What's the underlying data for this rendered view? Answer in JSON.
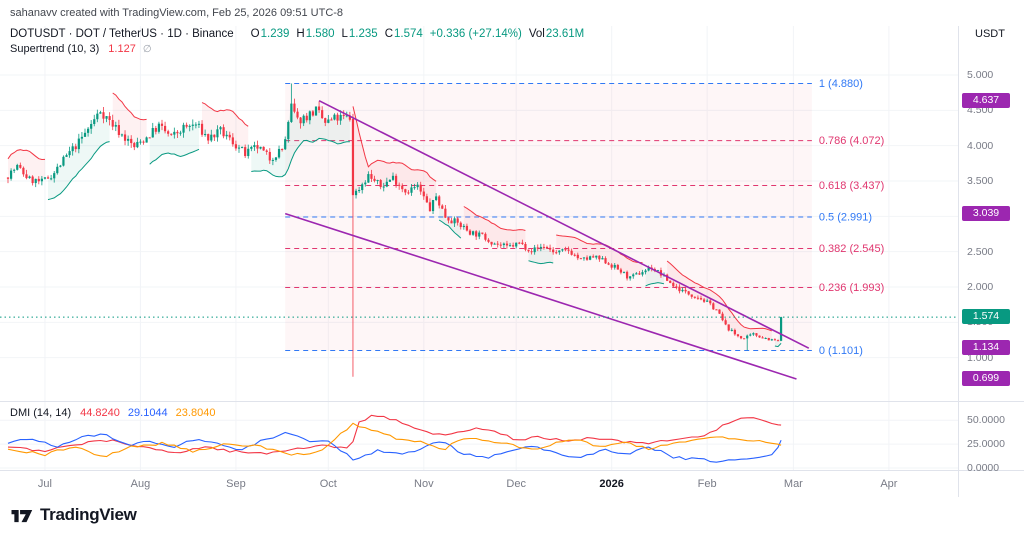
{
  "attribution": "sahanavv created with TradingView.com, Feb 25, 2026 09:51 UTC-8",
  "quote_currency": "USDT",
  "brand": "TradingView",
  "legend": {
    "symbol_title": "DOTUSDT · DOT / TetherUS · 1D · Binance",
    "ohlc": {
      "open_label": "O",
      "open": "1.239",
      "high_label": "H",
      "high": "1.580",
      "low_label": "L",
      "low": "1.235",
      "close_label": "C",
      "close": "1.574",
      "change": "+0.336 (+27.14%)",
      "vol_label": "Vol",
      "volume": "23.61M"
    },
    "supertrend": {
      "title": "Supertrend (10, 3)",
      "value": "1.127",
      "suffix": "∅"
    }
  },
  "dmi": {
    "title": "DMI (14, 14)",
    "adx": "44.8240",
    "plus_di": "29.1044",
    "minus_di": "23.8040"
  },
  "colors": {
    "up": "#089981",
    "down": "#f23645",
    "up_fill": "rgba(8,153,129,0.07)",
    "down_fill": "rgba(242,54,69,0.07)",
    "fib_fill": "rgba(242,54,69,0.045)",
    "fib_blue": "#3179f5",
    "fib_pink": "#e0366f",
    "channel": "#9c27b0",
    "badge_purple": "#9c27b0",
    "badge_teal": "#089981",
    "adx": "#f23645",
    "plus_di": "#2962ff",
    "minus_di": "#ff9800"
  },
  "chart_data": {
    "type": "candlestick",
    "symbol": "DOTUSDT",
    "interval": "1D",
    "exchange": "Binance",
    "last_ohlc": {
      "open": 1.239,
      "high": 1.58,
      "low": 1.235,
      "close": 1.574,
      "change": 0.336,
      "change_pct": 27.14,
      "volume": "23.61M"
    },
    "ylim": [
      0.55,
      5.15
    ],
    "price_axis_ticks": [
      "5.000",
      "4.500",
      "4.000",
      "3.500",
      "3.000",
      "2.500",
      "2.000",
      "1.500",
      "1.000"
    ],
    "candle_count": 252,
    "price_path": [
      [
        0,
        3.55
      ],
      [
        4,
        3.7
      ],
      [
        8,
        3.52
      ],
      [
        12,
        3.48
      ],
      [
        16,
        3.62
      ],
      [
        20,
        3.85
      ],
      [
        24,
        4.05
      ],
      [
        28,
        4.3
      ],
      [
        31,
        4.5
      ],
      [
        34,
        4.35
      ],
      [
        38,
        4.15
      ],
      [
        42,
        3.98
      ],
      [
        46,
        4.12
      ],
      [
        50,
        4.28
      ],
      [
        54,
        4.12
      ],
      [
        58,
        4.25
      ],
      [
        62,
        4.3
      ],
      [
        66,
        4.1
      ],
      [
        70,
        4.2
      ],
      [
        74,
        4.05
      ],
      [
        78,
        3.88
      ],
      [
        82,
        3.98
      ],
      [
        86,
        3.82
      ],
      [
        90,
        3.95
      ],
      [
        91,
        4.1
      ],
      [
        92,
        4.3
      ],
      [
        93,
        4.55
      ],
      [
        95,
        4.35
      ],
      [
        98,
        4.42
      ],
      [
        101,
        4.5
      ],
      [
        104,
        4.32
      ],
      [
        107,
        4.38
      ],
      [
        111,
        4.4
      ],
      [
        112,
        4.38
      ],
      [
        114,
        3.34
      ],
      [
        118,
        3.58
      ],
      [
        122,
        3.42
      ],
      [
        126,
        3.55
      ],
      [
        130,
        3.36
      ],
      [
        134,
        3.42
      ],
      [
        138,
        3.1
      ],
      [
        140,
        3.28
      ],
      [
        143,
        3.0
      ],
      [
        147,
        2.9
      ],
      [
        151,
        2.78
      ],
      [
        155,
        2.72
      ],
      [
        159,
        2.62
      ],
      [
        163,
        2.56
      ],
      [
        167,
        2.62
      ],
      [
        171,
        2.52
      ],
      [
        175,
        2.58
      ],
      [
        179,
        2.48
      ],
      [
        183,
        2.52
      ],
      [
        187,
        2.38
      ],
      [
        191,
        2.42
      ],
      [
        195,
        2.36
      ],
      [
        199,
        2.25
      ],
      [
        203,
        2.12
      ],
      [
        207,
        2.22
      ],
      [
        210,
        2.28
      ],
      [
        213,
        2.18
      ],
      [
        217,
        2.02
      ],
      [
        221,
        1.92
      ],
      [
        225,
        1.86
      ],
      [
        228,
        1.78
      ],
      [
        231,
        1.68
      ],
      [
        234,
        1.45
      ],
      [
        237,
        1.33
      ],
      [
        240,
        1.27
      ],
      [
        243,
        1.33
      ],
      [
        246,
        1.29
      ],
      [
        249,
        1.25
      ],
      [
        250,
        1.24
      ]
    ],
    "candle_overrides": {
      "92": {
        "h": 4.88
      },
      "112": {
        "o": 4.38,
        "h": 4.45,
        "l": 0.73,
        "c": 3.3
      },
      "240": {
        "l": 1.105
      },
      "251": {
        "o": 1.239,
        "h": 1.58,
        "l": 1.235,
        "c": 1.574
      }
    },
    "trend_segments": [
      {
        "from": 0,
        "to": 12,
        "dir": "down"
      },
      {
        "from": 13,
        "to": 33,
        "dir": "up"
      },
      {
        "from": 34,
        "to": 45,
        "dir": "down"
      },
      {
        "from": 46,
        "to": 62,
        "dir": "up"
      },
      {
        "from": 63,
        "to": 78,
        "dir": "down"
      },
      {
        "from": 79,
        "to": 111,
        "dir": "up"
      },
      {
        "from": 112,
        "to": 139,
        "dir": "down"
      },
      {
        "from": 140,
        "to": 147,
        "dir": "up"
      },
      {
        "from": 148,
        "to": 168,
        "dir": "down"
      },
      {
        "from": 169,
        "to": 177,
        "dir": "up"
      },
      {
        "from": 178,
        "to": 206,
        "dir": "down"
      },
      {
        "from": 207,
        "to": 213,
        "dir": "up"
      },
      {
        "from": 214,
        "to": 248,
        "dir": "down"
      },
      {
        "from": 249,
        "to": 251,
        "dir": "up"
      }
    ],
    "fib": {
      "from_index": 90,
      "to_index": 261,
      "levels": [
        {
          "label": "1 (4.880)",
          "price": 4.88,
          "color": "#3179f5"
        },
        {
          "label": "0.786 (4.072)",
          "price": 4.072,
          "color": "#e0366f"
        },
        {
          "label": "0.618 (3.437)",
          "price": 3.437,
          "color": "#e0366f"
        },
        {
          "label": "0.5 (2.991)",
          "price": 2.991,
          "color": "#3179f5"
        },
        {
          "label": "0.382 (2.545)",
          "price": 2.545,
          "color": "#e0366f"
        },
        {
          "label": "0.236 (1.993)",
          "price": 1.993,
          "color": "#e0366f"
        },
        {
          "label": "0 (1.101)",
          "price": 1.101,
          "color": "#3179f5"
        }
      ]
    },
    "channel_lines": [
      {
        "from": [
          101,
          4.637
        ],
        "to": [
          260,
          1.134
        ]
      },
      {
        "from": [
          90,
          3.039
        ],
        "to": [
          256,
          0.699
        ]
      }
    ],
    "price_line": {
      "price": 1.574,
      "label": "1.574"
    },
    "axis_badges": [
      {
        "label": "4.637",
        "price": 4.637,
        "color": "#9c27b0"
      },
      {
        "label": "3.039",
        "price": 3.039,
        "color": "#9c27b0"
      },
      {
        "label": "1.574",
        "price": 1.574,
        "color": "#089981"
      },
      {
        "label": "1.134",
        "price": 1.134,
        "color": "#9c27b0"
      },
      {
        "label": "0.699",
        "price": 0.699,
        "color": "#9c27b0"
      }
    ],
    "months": [
      {
        "label": "Jul",
        "index": 12
      },
      {
        "label": "Aug",
        "index": 43
      },
      {
        "label": "Sep",
        "index": 74
      },
      {
        "label": "Oct",
        "index": 104
      },
      {
        "label": "Nov",
        "index": 135
      },
      {
        "label": "Dec",
        "index": 165
      },
      {
        "label": "2026",
        "index": 196,
        "bold": true
      },
      {
        "label": "Feb",
        "index": 227
      },
      {
        "label": "Mar",
        "index": 255
      },
      {
        "label": "Apr",
        "index": 286
      }
    ],
    "dmi_pane": {
      "ticks": [
        "50.0000",
        "25.0000",
        "0.0000"
      ],
      "series": [
        {
          "name": "adx",
          "color": "#f23645",
          "points": [
            [
              0,
              22
            ],
            [
              12,
              17
            ],
            [
              24,
              26
            ],
            [
              34,
              29
            ],
            [
              44,
              21
            ],
            [
              54,
              16
            ],
            [
              64,
              22
            ],
            [
              74,
              17
            ],
            [
              84,
              15
            ],
            [
              94,
              21
            ],
            [
              104,
              24
            ],
            [
              111,
              19
            ],
            [
              114,
              48
            ],
            [
              119,
              56
            ],
            [
              126,
              49
            ],
            [
              133,
              41
            ],
            [
              139,
              34
            ],
            [
              146,
              38
            ],
            [
              153,
              43
            ],
            [
              159,
              36
            ],
            [
              166,
              29
            ],
            [
              173,
              33
            ],
            [
              181,
              27
            ],
            [
              189,
              31
            ],
            [
              197,
              29
            ],
            [
              205,
              25
            ],
            [
              211,
              27
            ],
            [
              219,
              31
            ],
            [
              227,
              34
            ],
            [
              233,
              47
            ],
            [
              239,
              53
            ],
            [
              244,
              50
            ],
            [
              248,
              46
            ],
            [
              251,
              44.824
            ]
          ]
        },
        {
          "name": "plus-di",
          "color": "#2962ff",
          "points": [
            [
              0,
              26
            ],
            [
              8,
              31
            ],
            [
              16,
              21
            ],
            [
              24,
              33
            ],
            [
              31,
              36
            ],
            [
              39,
              24
            ],
            [
              46,
              29
            ],
            [
              53,
              21
            ],
            [
              61,
              31
            ],
            [
              69,
              24
            ],
            [
              76,
              19
            ],
            [
              83,
              29
            ],
            [
              90,
              36
            ],
            [
              97,
              29
            ],
            [
              105,
              27
            ],
            [
              112,
              9
            ],
            [
              120,
              18
            ],
            [
              128,
              14
            ],
            [
              135,
              21
            ],
            [
              141,
              29
            ],
            [
              148,
              14
            ],
            [
              156,
              11
            ],
            [
              163,
              19
            ],
            [
              171,
              23
            ],
            [
              179,
              14
            ],
            [
              186,
              11
            ],
            [
              193,
              19
            ],
            [
              201,
              13
            ],
            [
              208,
              23
            ],
            [
              216,
              11
            ],
            [
              223,
              9
            ],
            [
              231,
              7
            ],
            [
              238,
              9
            ],
            [
              245,
              11
            ],
            [
              249,
              14
            ],
            [
              251,
              29.1044
            ]
          ]
        },
        {
          "name": "minus-di",
          "color": "#ff9800",
          "points": [
            [
              0,
              19
            ],
            [
              12,
              14
            ],
            [
              22,
              23
            ],
            [
              31,
              11
            ],
            [
              41,
              23
            ],
            [
              51,
              26
            ],
            [
              61,
              17
            ],
            [
              71,
              26
            ],
            [
              81,
              23
            ],
            [
              91,
              14
            ],
            [
              101,
              17
            ],
            [
              112,
              46
            ],
            [
              119,
              39
            ],
            [
              126,
              31
            ],
            [
              133,
              28
            ],
            [
              141,
              19
            ],
            [
              148,
              31
            ],
            [
              156,
              29
            ],
            [
              163,
              24
            ],
            [
              171,
              19
            ],
            [
              179,
              27
            ],
            [
              186,
              29
            ],
            [
              193,
              21
            ],
            [
              201,
              27
            ],
            [
              208,
              19
            ],
            [
              216,
              27
            ],
            [
              223,
              29
            ],
            [
              231,
              33
            ],
            [
              237,
              31
            ],
            [
              243,
              29
            ],
            [
              248,
              27
            ],
            [
              251,
              23.804
            ]
          ]
        }
      ]
    }
  }
}
